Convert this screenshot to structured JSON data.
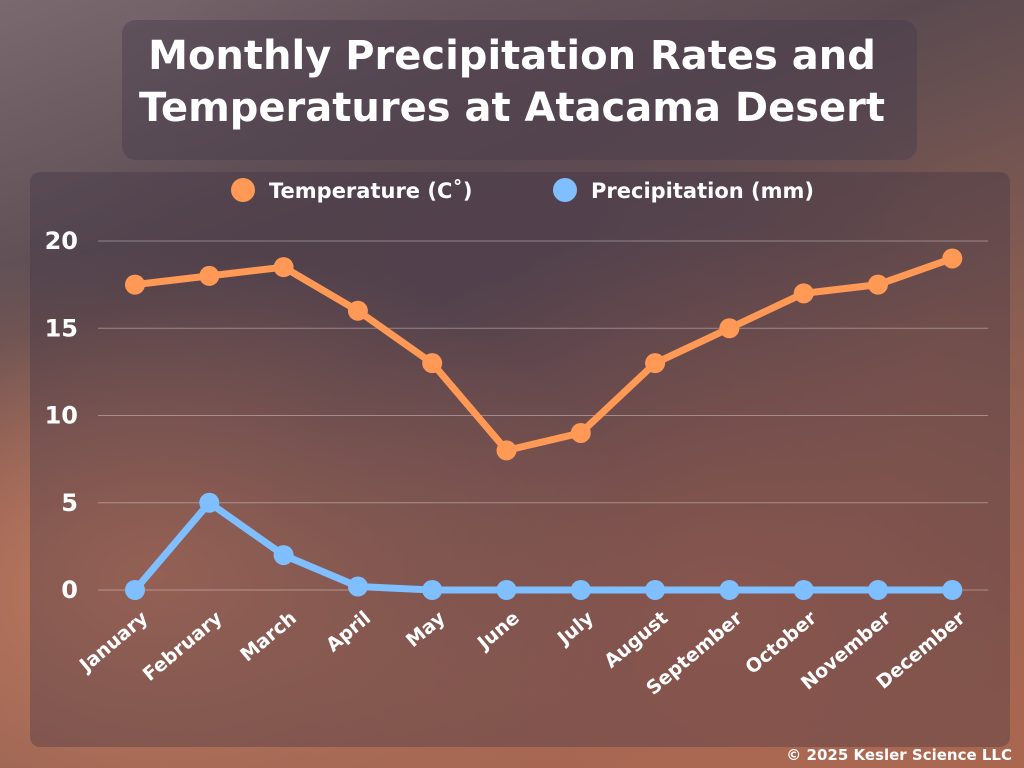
{
  "chart_data": {
    "type": "line",
    "title": "Monthly Precipitation Rates and Temperatures at Atacama Desert",
    "categories": [
      "January",
      "February",
      "March",
      "April",
      "May",
      "June",
      "July",
      "August",
      "September",
      "October",
      "November",
      "December"
    ],
    "series": [
      {
        "name": "Temperature (C˚)",
        "color": "#ff9955",
        "values": [
          17.5,
          18,
          18.5,
          16,
          13,
          8,
          9,
          13,
          15,
          17,
          17.5,
          19
        ]
      },
      {
        "name": "Precipitation (mm)",
        "color": "#7fbfff",
        "values": [
          0,
          5,
          2,
          0.2,
          0,
          0,
          0,
          0,
          0,
          0,
          0,
          0
        ]
      }
    ],
    "yticks": [
      "0",
      "5",
      "10",
      "15",
      "20"
    ],
    "ylim": [
      0,
      20
    ],
    "grid": true,
    "legend": "top"
  },
  "title_lines": [
    "Monthly Precipitation Rates and",
    "Temperatures at Atacama Desert"
  ],
  "copyright": "© 2025 Kesler Science LLC"
}
